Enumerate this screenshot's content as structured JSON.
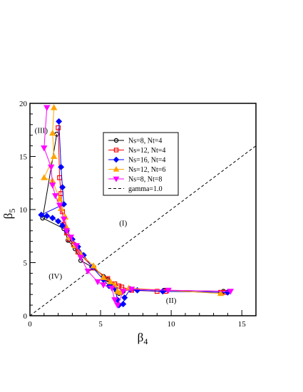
{
  "chart_data": {
    "type": "scatter",
    "title": "",
    "xlabel": {
      "base": "β",
      "sub": "4"
    },
    "ylabel": {
      "base": "β",
      "sub": "5"
    },
    "xlim": [
      0,
      16
    ],
    "ylim": [
      0,
      20
    ],
    "x_ticks": [
      0,
      5,
      10,
      15
    ],
    "y_ticks": [
      0,
      5,
      10,
      15,
      20
    ],
    "x_tick_labels": [
      "0",
      "5",
      "10",
      "15"
    ],
    "y_tick_labels": [
      "0",
      "5",
      "10",
      "15",
      "20"
    ],
    "legend_position": "top-center",
    "regions": [
      {
        "label": "(I)",
        "x": 6.6,
        "y": 8.5
      },
      {
        "label": "(II)",
        "x": 10.0,
        "y": 1.2
      },
      {
        "label": "(III)",
        "x": 0.8,
        "y": 17.2
      },
      {
        "label": "(IV)",
        "x": 1.8,
        "y": 3.5
      }
    ],
    "series": [
      {
        "name": "Ns=8, Nt=4",
        "marker": "circle",
        "color": "#000000",
        "filled": false,
        "points": [
          [
            1.9,
            17.1
          ],
          [
            0.9,
            9.2
          ],
          [
            2.4,
            8.2
          ],
          [
            2.7,
            7.1
          ],
          [
            3.2,
            6.3
          ],
          [
            3.6,
            5.2
          ],
          [
            4.5,
            4.5
          ],
          [
            5.2,
            3.7
          ],
          [
            5.5,
            3.4
          ],
          [
            6.1,
            2.4
          ],
          [
            6.3,
            2.1
          ],
          [
            6.6,
            2.3
          ],
          [
            7.2,
            2.5
          ],
          [
            9.5,
            2.4
          ],
          [
            13.7,
            2.3
          ]
        ]
      },
      {
        "name": "Ns=12, Nt=4",
        "marker": "square",
        "color": "#ff0000",
        "filled": false,
        "points": [
          [
            2.0,
            17.7
          ],
          [
            2.1,
            13.0
          ],
          [
            2.2,
            11.5
          ],
          [
            2.3,
            9.8
          ],
          [
            2.4,
            8.6
          ],
          [
            2.6,
            7.8
          ],
          [
            2.8,
            7.2
          ],
          [
            3.1,
            6.7
          ],
          [
            3.4,
            6.0
          ],
          [
            4.5,
            4.5
          ],
          [
            5.5,
            3.5
          ],
          [
            6.0,
            3.0
          ],
          [
            6.3,
            2.8
          ],
          [
            6.5,
            2.7
          ],
          [
            7.2,
            2.4
          ],
          [
            9.0,
            2.3
          ],
          [
            9.6,
            2.3
          ],
          [
            13.5,
            2.2
          ],
          [
            13.8,
            2.2
          ]
        ]
      },
      {
        "name": "Ns=16, Nt=4",
        "marker": "diamond",
        "color": "#0000ff",
        "filled": true,
        "points": [
          [
            2.05,
            18.3
          ],
          [
            2.2,
            14.0
          ],
          [
            2.3,
            12.1
          ],
          [
            2.4,
            10.5
          ],
          [
            0.8,
            9.5
          ],
          [
            1.2,
            9.4
          ],
          [
            1.6,
            9.2
          ],
          [
            2.0,
            8.9
          ],
          [
            2.3,
            8.5
          ],
          [
            2.6,
            8.0
          ],
          [
            3.0,
            7.2
          ],
          [
            3.4,
            6.5
          ],
          [
            3.8,
            5.7
          ],
          [
            4.4,
            4.6
          ],
          [
            5.2,
            3.4
          ],
          [
            5.6,
            2.8
          ],
          [
            5.8,
            2.7
          ],
          [
            6.0,
            2.6
          ],
          [
            6.2,
            1.5
          ],
          [
            6.3,
            1.0
          ],
          [
            6.6,
            1.1
          ],
          [
            6.7,
            1.7
          ],
          [
            7.1,
            2.5
          ],
          [
            7.6,
            2.4
          ],
          [
            9.4,
            2.3
          ],
          [
            14.0,
            2.2
          ]
        ]
      },
      {
        "name": "Ns=12, Nt=6",
        "marker": "triangle",
        "color": "#ffa500",
        "filled": true,
        "points": [
          [
            1.7,
            19.6
          ],
          [
            1.6,
            17.2
          ],
          [
            1.7,
            15.0
          ],
          [
            1.0,
            13.0
          ],
          [
            1.6,
            12.7
          ],
          [
            2.1,
            11.0
          ],
          [
            2.2,
            10.1
          ],
          [
            2.5,
            9.3
          ],
          [
            2.6,
            8.3
          ],
          [
            2.8,
            7.4
          ],
          [
            3.2,
            6.6
          ],
          [
            3.6,
            5.8
          ],
          [
            4.5,
            4.7
          ],
          [
            5.2,
            3.6
          ],
          [
            5.7,
            3.2
          ],
          [
            6.0,
            2.9
          ],
          [
            6.2,
            2.3
          ],
          [
            6.4,
            2.2
          ],
          [
            7.0,
            2.6
          ],
          [
            13.5,
            2.1
          ]
        ]
      },
      {
        "name": "Ns=8, Nt=8",
        "marker": "triangle-down",
        "color": "#ff00ff",
        "filled": true,
        "points": [
          [
            1.2,
            19.6
          ],
          [
            1.0,
            15.8
          ],
          [
            1.5,
            14.0
          ],
          [
            1.6,
            12.3
          ],
          [
            1.8,
            11.3
          ],
          [
            2.1,
            10.4
          ],
          [
            2.4,
            9.1
          ],
          [
            2.6,
            8.0
          ],
          [
            2.9,
            7.4
          ],
          [
            3.3,
            6.6
          ],
          [
            3.6,
            5.5
          ],
          [
            4.1,
            4.2
          ],
          [
            4.8,
            3.2
          ],
          [
            5.2,
            2.9
          ],
          [
            5.8,
            2.6
          ],
          [
            6.0,
            1.5
          ],
          [
            6.2,
            1.0
          ],
          [
            6.6,
            2.3
          ],
          [
            7.2,
            2.5
          ],
          [
            9.8,
            2.4
          ],
          [
            14.2,
            2.3
          ]
        ]
      }
    ],
    "reference_line": {
      "name": "gamma=1.0",
      "style": "dashed",
      "color": "#000000",
      "slope": 1.0
    }
  }
}
